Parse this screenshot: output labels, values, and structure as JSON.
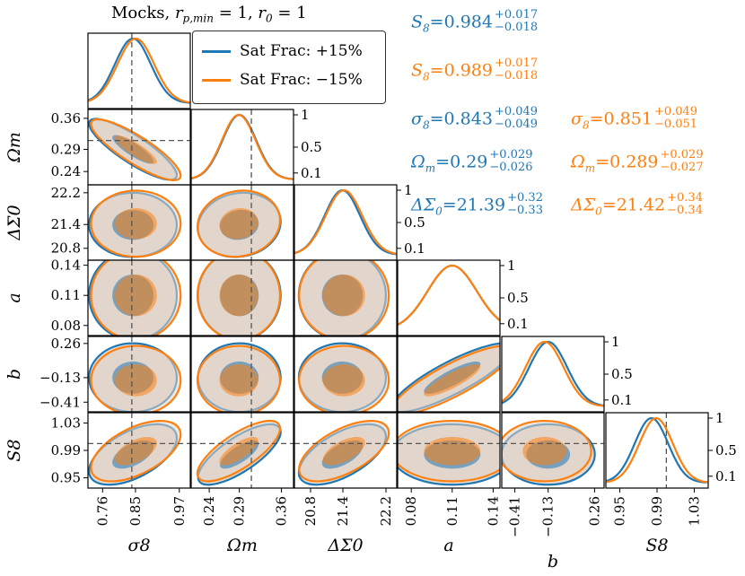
{
  "title_parts": {
    "prefix": "Mocks, ",
    "rpmin": "r",
    "rpmin_sub": "p,min",
    "eq1": " = 1, ",
    "r0": "r",
    "r0_sub": "0",
    "eq2": " = 1"
  },
  "legend": {
    "items": [
      {
        "label": "Sat Frac: +15%",
        "color": "#1f77b4"
      },
      {
        "label": "Sat Frac: −15%",
        "color": "#ff7f0e"
      }
    ]
  },
  "colors": {
    "blue": "#1f77b4",
    "orange": "#ff7f0e",
    "fill": "#e0d3c8",
    "ref_line": "#555555"
  },
  "annotations": {
    "blue": [
      {
        "sym": "S",
        "sub": "8",
        "val": "0.984",
        "up": "+0.017",
        "dn": "−0.018"
      },
      {
        "sym": "σ",
        "sub": "8",
        "val": "0.843",
        "up": "+0.049",
        "dn": "−0.049"
      },
      {
        "sym": "Ω",
        "sub": "m",
        "val": "0.29",
        "up": "+0.029",
        "dn": "−0.026"
      },
      {
        "sym": "ΔΣ",
        "sub": "0",
        "val": "21.39",
        "up": "+0.32",
        "dn": "−0.33"
      }
    ],
    "orange": [
      {
        "sym": "S",
        "sub": "8",
        "val": "0.989",
        "up": "+0.017",
        "dn": "−0.018"
      },
      {
        "sym": "σ",
        "sub": "8",
        "val": "0.851",
        "up": "+0.049",
        "dn": "−0.051"
      },
      {
        "sym": "Ω",
        "sub": "m",
        "val": "0.289",
        "up": "+0.029",
        "dn": "−0.027"
      },
      {
        "sym": "ΔΣ",
        "sub": "0",
        "val": "21.42",
        "up": "+0.34",
        "dn": "−0.34"
      }
    ]
  },
  "chart_data": {
    "type": "corner",
    "params": [
      {
        "key": "sigma8",
        "label": "σ8",
        "range": [
          0.72,
          1.0
        ],
        "ticks": [
          "0.76",
          "0.85",
          "0.97"
        ],
        "tick_vals": [
          0.76,
          0.85,
          0.97
        ],
        "truth": 0.84
      },
      {
        "key": "omegam",
        "label": "Ωm",
        "range": [
          0.21,
          0.38
        ],
        "ticks": [
          "0.24",
          "0.29",
          "0.36"
        ],
        "tick_vals": [
          0.24,
          0.29,
          0.36
        ],
        "truth": 0.31
      },
      {
        "key": "dsigma0",
        "label": "ΔΣ0",
        "range": [
          20.5,
          22.4
        ],
        "ticks": [
          "20.8",
          "21.4",
          "22.2"
        ],
        "tick_vals": [
          20.8,
          21.4,
          22.2
        ],
        "truth": null
      },
      {
        "key": "a",
        "label": "a",
        "range": [
          0.07,
          0.145
        ],
        "ticks": [
          "0.08",
          "0.11",
          "0.14"
        ],
        "tick_vals": [
          0.08,
          0.11,
          0.14
        ],
        "truth": null
      },
      {
        "key": "b",
        "label": "b",
        "range": [
          -0.52,
          0.34
        ],
        "ticks": [
          "−0.41",
          "−0.13",
          "0.26"
        ],
        "tick_vals": [
          -0.41,
          -0.13,
          0.26
        ],
        "truth": null
      },
      {
        "key": "S8",
        "label": "S8",
        "range": [
          0.935,
          1.045
        ],
        "ticks": [
          "0.95",
          "0.99",
          "1.03"
        ],
        "tick_vals": [
          0.95,
          0.99,
          1.03
        ],
        "truth": 1.0
      }
    ],
    "marginal_ticks": [
      "0.1",
      "0.5",
      "1"
    ],
    "marginal_tick_vals": [
      0.1,
      0.5,
      1.0
    ],
    "series": [
      {
        "name": "Sat Frac: +15%",
        "color": "#1f77b4",
        "means": [
          0.843,
          0.29,
          21.39,
          0.11,
          -0.13,
          0.984
        ],
        "sigmas": [
          0.049,
          0.028,
          0.33,
          0.018,
          0.16,
          0.018
        ]
      },
      {
        "name": "Sat Frac: −15%",
        "color": "#ff7f0e",
        "means": [
          0.851,
          0.289,
          21.42,
          0.11,
          -0.16,
          0.989
        ],
        "sigmas": [
          0.05,
          0.028,
          0.34,
          0.018,
          0.16,
          0.018
        ]
      }
    ],
    "correlations": {
      "1,0": -0.85,
      "2,0": 0.0,
      "2,1": 0.1,
      "3,0": 0.0,
      "3,1": 0.0,
      "3,2": 0.0,
      "4,0": 0.0,
      "4,1": 0.0,
      "4,2": 0.0,
      "4,3": 0.85,
      "5,0": 0.55,
      "5,1": 0.75,
      "5,2": 0.6,
      "5,3": 0.0,
      "5,4": 0.0
    }
  }
}
